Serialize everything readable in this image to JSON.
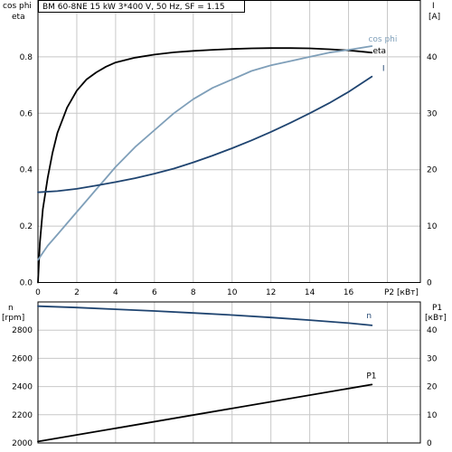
{
  "title": "BM 60-8NE   15 kW   3*400 V, 50 Hz, SF = 1.15",
  "colors": {
    "eta": "#000000",
    "cos_phi": "#7f9fb9",
    "I": "#1f4470",
    "n": "#1f4470",
    "P1": "#000000",
    "grid": "#c8c8c8"
  },
  "chart_data": [
    {
      "type": "line",
      "name": "top",
      "y_left_label_1": "cos phi",
      "y_left_label_2": "eta",
      "y_right_label_1": "I",
      "y_right_label_2": "[A]",
      "x_label": "P2 [кВт]",
      "xlim": [
        0,
        19.7
      ],
      "ylim_left": [
        0,
        1.0
      ],
      "ylim_right": [
        0,
        50
      ],
      "x_ticks": [
        0,
        2,
        4,
        6,
        8,
        10,
        12,
        14,
        16
      ],
      "y_left_ticks": [
        0.0,
        0.2,
        0.4,
        0.6,
        0.8
      ],
      "y_left_tick_labels": [
        "0.0",
        "0.2",
        "0.4",
        "0.6",
        "0.8"
      ],
      "y_right_ticks": [
        0,
        10,
        20,
        30,
        40
      ],
      "grid": true,
      "series": [
        {
          "name": "eta",
          "axis": "left",
          "color": "#000000",
          "x": [
            0.0,
            0.1,
            0.25,
            0.5,
            0.75,
            1.0,
            1.5,
            2.0,
            2.5,
            3.0,
            3.5,
            4.0,
            5.0,
            6.0,
            7.0,
            8.0,
            9.0,
            10.0,
            11.0,
            12.0,
            13.0,
            14.0,
            15.0,
            16.0,
            17.2
          ],
          "y": [
            0.0,
            0.14,
            0.26,
            0.37,
            0.46,
            0.53,
            0.62,
            0.68,
            0.72,
            0.745,
            0.765,
            0.78,
            0.797,
            0.808,
            0.816,
            0.821,
            0.825,
            0.828,
            0.83,
            0.831,
            0.831,
            0.83,
            0.827,
            0.823,
            0.815
          ]
        },
        {
          "name": "cos phi",
          "axis": "left",
          "color": "#7f9fb9",
          "x": [
            0.0,
            0.5,
            1.0,
            1.5,
            2.0,
            2.5,
            3.0,
            3.5,
            4.0,
            5.0,
            6.0,
            7.0,
            8.0,
            9.0,
            10.0,
            11.0,
            12.0,
            13.0,
            14.0,
            15.0,
            16.0,
            17.2
          ],
          "y": [
            0.08,
            0.13,
            0.17,
            0.21,
            0.25,
            0.29,
            0.33,
            0.37,
            0.41,
            0.48,
            0.54,
            0.6,
            0.65,
            0.69,
            0.72,
            0.75,
            0.77,
            0.785,
            0.8,
            0.815,
            0.825,
            0.838
          ]
        },
        {
          "name": "I",
          "axis": "right",
          "color": "#1f4470",
          "x": [
            0.0,
            1.0,
            2.0,
            3.0,
            4.0,
            5.0,
            6.0,
            7.0,
            8.0,
            9.0,
            10.0,
            11.0,
            12.0,
            13.0,
            14.0,
            15.0,
            16.0,
            17.2
          ],
          "y": [
            16.0,
            16.2,
            16.6,
            17.2,
            17.8,
            18.5,
            19.3,
            20.2,
            21.3,
            22.5,
            23.8,
            25.2,
            26.7,
            28.3,
            30.0,
            31.8,
            33.8,
            36.5
          ]
        }
      ]
    },
    {
      "type": "line",
      "name": "bottom",
      "y_left_label_1": "n",
      "y_left_label_2": "[rpm]",
      "y_right_label_1": "P1",
      "y_right_label_2": "[кВт]",
      "xlim": [
        0,
        19.7
      ],
      "ylim_left": [
        2000,
        3000
      ],
      "ylim_right": [
        0,
        50
      ],
      "y_left_ticks": [
        2000,
        2200,
        2400,
        2600,
        2800
      ],
      "y_right_ticks": [
        0,
        10,
        20,
        30,
        40
      ],
      "grid": true,
      "series": [
        {
          "name": "n",
          "axis": "left",
          "color": "#1f4470",
          "x": [
            0.0,
            2.0,
            4.0,
            6.0,
            8.0,
            10.0,
            12.0,
            14.0,
            16.0,
            17.2
          ],
          "y": [
            2970,
            2960,
            2948,
            2936,
            2922,
            2907,
            2890,
            2871,
            2850,
            2834
          ]
        },
        {
          "name": "P1",
          "axis": "right",
          "color": "#000000",
          "x": [
            0.0,
            17.2
          ],
          "y": [
            0.5,
            20.7
          ]
        }
      ]
    }
  ]
}
